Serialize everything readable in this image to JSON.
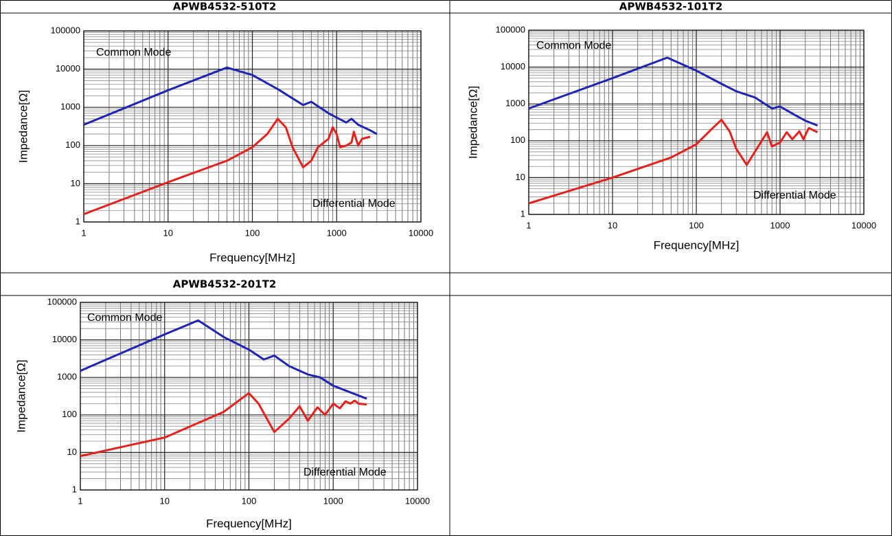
{
  "chart_data": [
    {
      "type": "line",
      "title": "APWB4532-510T2",
      "x_label": "Frequency[MHz]",
      "y_label": "Impedance[Ω]",
      "log_x": true,
      "log_y": true,
      "grid": true,
      "xlim": [
        1,
        10000
      ],
      "xticks": [
        1,
        10,
        100,
        1000,
        10000
      ],
      "ylim": [
        1,
        100000
      ],
      "yticks": [
        1,
        10,
        100,
        1000,
        10000,
        100000
      ],
      "series": [
        {
          "name": "Common Mode",
          "color": "#1f24b4",
          "x": [
            1,
            10,
            50,
            100,
            200,
            400,
            500,
            800,
            1300,
            1500,
            1800,
            2500,
            3000
          ],
          "values": [
            350,
            2800,
            11000,
            7000,
            3000,
            1150,
            1400,
            700,
            400,
            500,
            350,
            250,
            200
          ]
        },
        {
          "name": "Differential Mode",
          "color": "#e8201c",
          "x": [
            1,
            10,
            50,
            100,
            150,
            200,
            250,
            300,
            400,
            500,
            600,
            800,
            900,
            1000,
            1100,
            1300,
            1500,
            1600,
            1800,
            2000,
            2500
          ],
          "values": [
            1.6,
            11,
            40,
            90,
            200,
            500,
            300,
            90,
            27,
            40,
            90,
            150,
            300,
            200,
            90,
            100,
            120,
            230,
            100,
            150,
            170
          ]
        }
      ]
    },
    {
      "type": "line",
      "title": "APWB4532-101T2",
      "x_label": "Frequency[MHz]",
      "y_label": "Impedance[Ω]",
      "log_x": true,
      "log_y": true,
      "grid": true,
      "xlim": [
        1,
        10000
      ],
      "xticks": [
        1,
        10,
        100,
        1000,
        10000
      ],
      "ylim": [
        1,
        100000
      ],
      "yticks": [
        1,
        10,
        100,
        1000,
        10000,
        100000
      ],
      "series": [
        {
          "name": "Common Mode",
          "color": "#1f24b4",
          "x": [
            1,
            10,
            45,
            100,
            200,
            300,
            500,
            800,
            1000,
            1500,
            2000,
            2800
          ],
          "values": [
            750,
            5000,
            18000,
            8000,
            3500,
            2200,
            1500,
            750,
            850,
            500,
            350,
            260
          ]
        },
        {
          "name": "Differential Mode",
          "color": "#e8201c",
          "x": [
            1,
            10,
            50,
            100,
            150,
            200,
            250,
            300,
            400,
            500,
            700,
            800,
            1000,
            1200,
            1400,
            1700,
            1900,
            2200,
            2800
          ],
          "values": [
            2,
            10,
            35,
            80,
            200,
            370,
            180,
            60,
            22,
            50,
            170,
            70,
            90,
            170,
            110,
            180,
            110,
            220,
            170
          ]
        }
      ]
    },
    {
      "type": "line",
      "title": "APWB4532-201T2",
      "x_label": "Frequency[MHz]",
      "y_label": "Impedance[Ω]",
      "log_x": true,
      "log_y": true,
      "grid": true,
      "xlim": [
        1,
        10000
      ],
      "xticks": [
        1,
        10,
        100,
        1000,
        10000
      ],
      "ylim": [
        1,
        100000
      ],
      "yticks": [
        1,
        10,
        100,
        1000,
        10000,
        100000
      ],
      "series": [
        {
          "name": "Common Mode",
          "color": "#1f24b4",
          "x": [
            1,
            10,
            25,
            50,
            100,
            150,
            200,
            300,
            500,
            700,
            1000,
            2500
          ],
          "values": [
            1500,
            14000,
            33000,
            12000,
            5500,
            3000,
            3800,
            2000,
            1200,
            1000,
            600,
            270
          ]
        },
        {
          "name": "Differential Mode",
          "color": "#e8201c",
          "x": [
            1,
            10,
            50,
            100,
            130,
            200,
            300,
            400,
            500,
            650,
            800,
            1000,
            1200,
            1400,
            1600,
            1800,
            2000,
            2500
          ],
          "values": [
            8,
            25,
            120,
            380,
            200,
            35,
            80,
            170,
            70,
            160,
            100,
            200,
            150,
            230,
            200,
            240,
            200,
            190
          ]
        }
      ]
    }
  ]
}
